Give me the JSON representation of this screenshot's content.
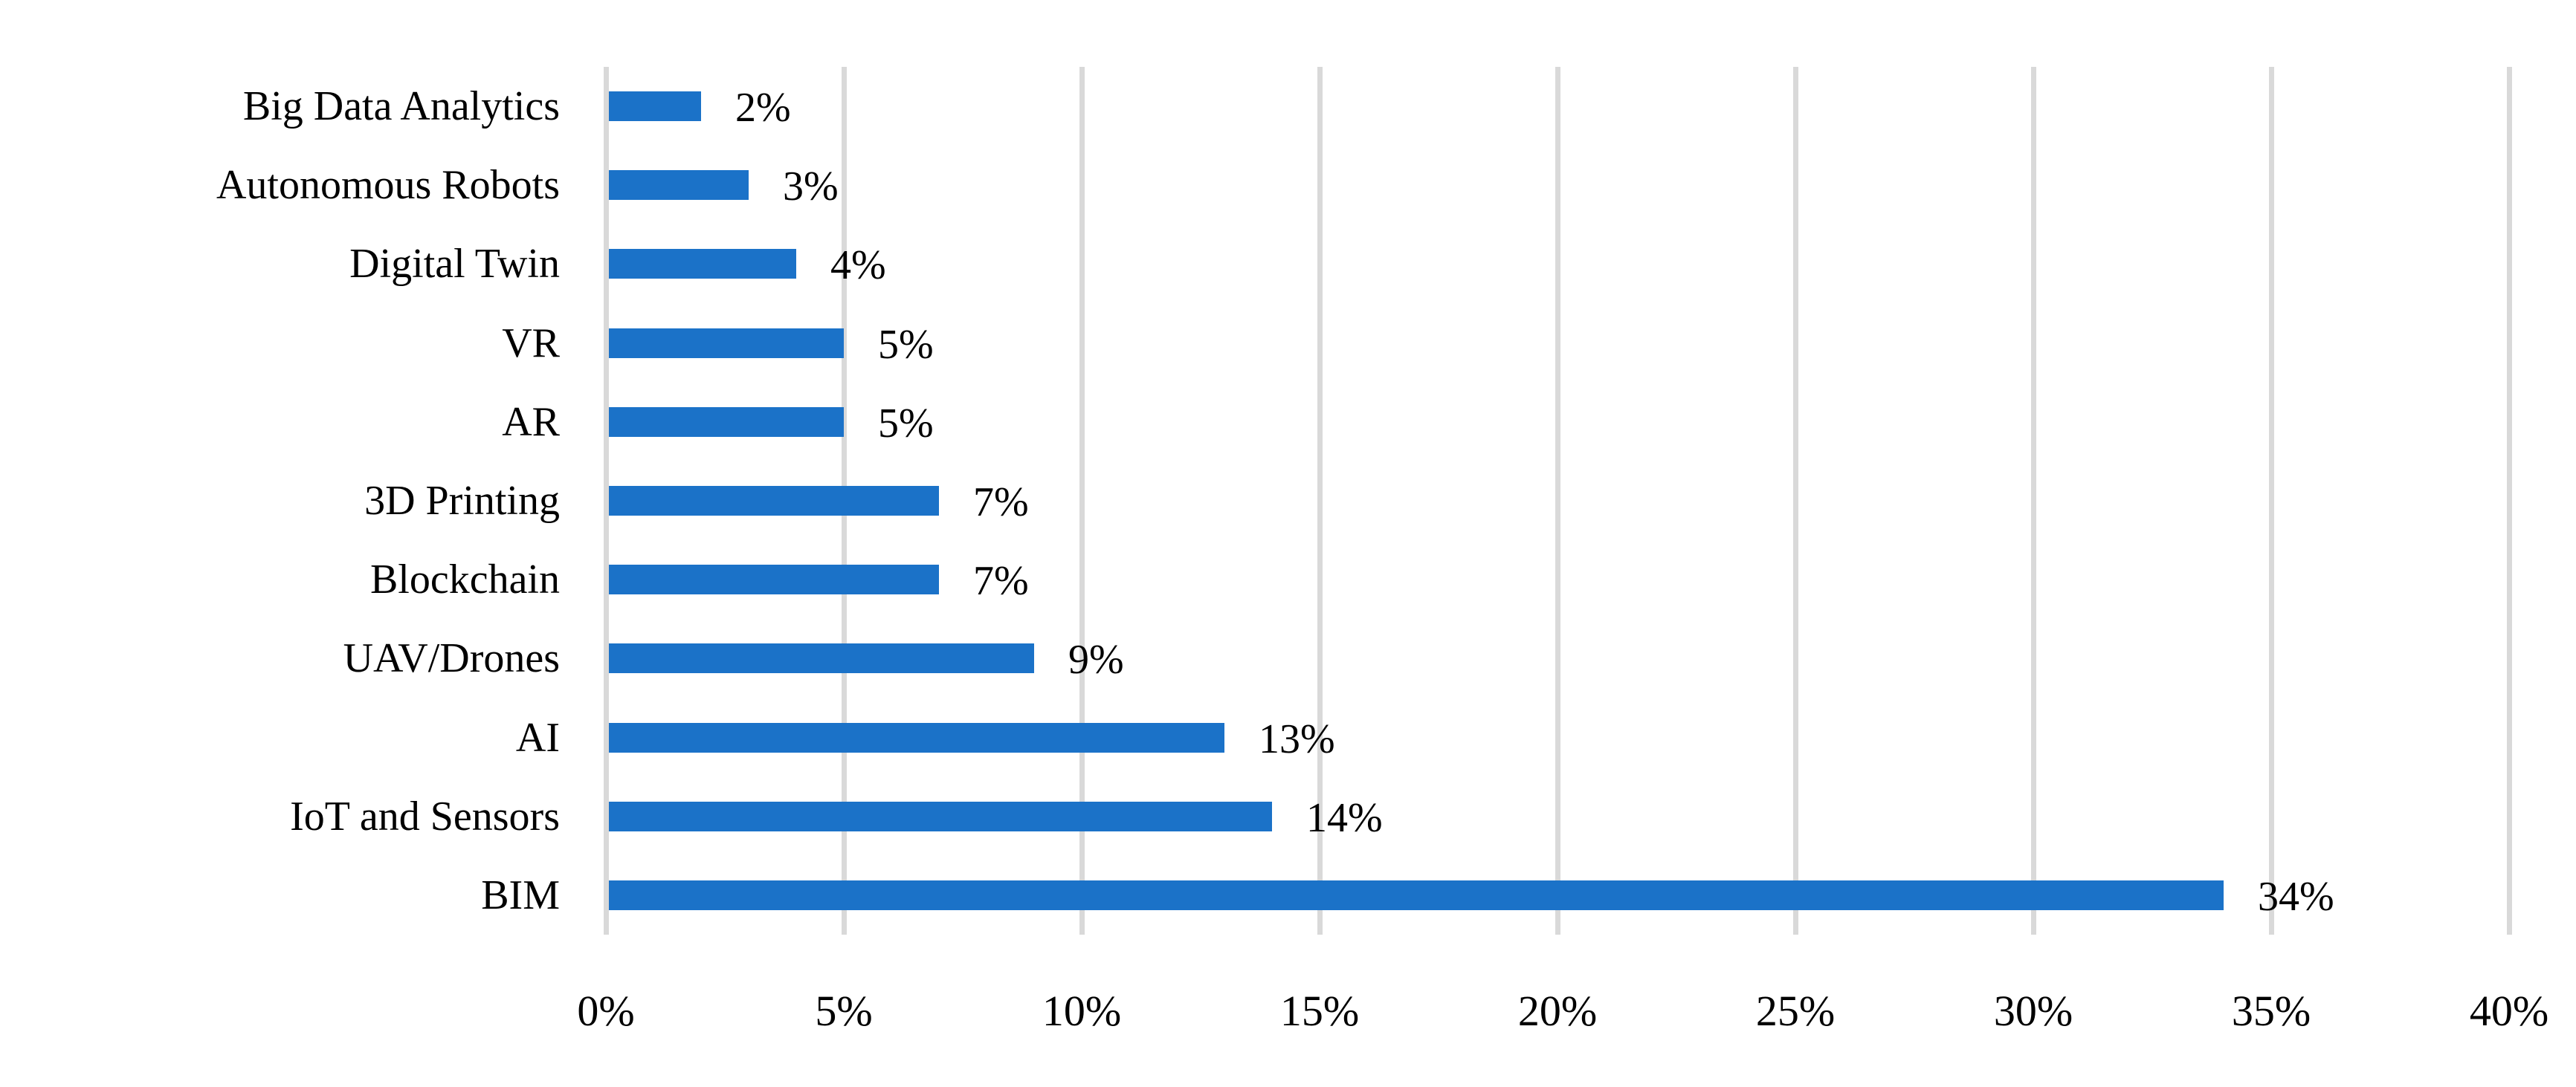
{
  "chart_data": {
    "type": "bar",
    "orientation": "horizontal",
    "title": "",
    "xlabel": "",
    "ylabel": "",
    "categories": [
      "Big Data Analytics",
      "Autonomous Robots",
      "Digital Twin",
      "VR",
      "AR",
      "3D Printing",
      "Blockchain",
      "UAV/Drones",
      "AI",
      "IoT and Sensors",
      "BIM"
    ],
    "values": [
      2,
      3,
      4,
      5,
      5,
      7,
      7,
      9,
      13,
      14,
      34
    ],
    "data_labels": [
      "2%",
      "3%",
      "4%",
      "5%",
      "5%",
      "7%",
      "7%",
      "9%",
      "13%",
      "14%",
      "34%"
    ],
    "xlim": [
      0,
      40
    ],
    "x_tick_step": 5,
    "x_tick_labels": [
      "0%",
      "5%",
      "10%",
      "15%",
      "20%",
      "25%",
      "30%",
      "35%",
      "40%"
    ],
    "grid": "vertical-only",
    "legend": "none",
    "colors": {
      "bar": "#1B72C8",
      "gridline": "#D9D9D9",
      "text": "#000000",
      "background": "#FFFFFF"
    }
  }
}
